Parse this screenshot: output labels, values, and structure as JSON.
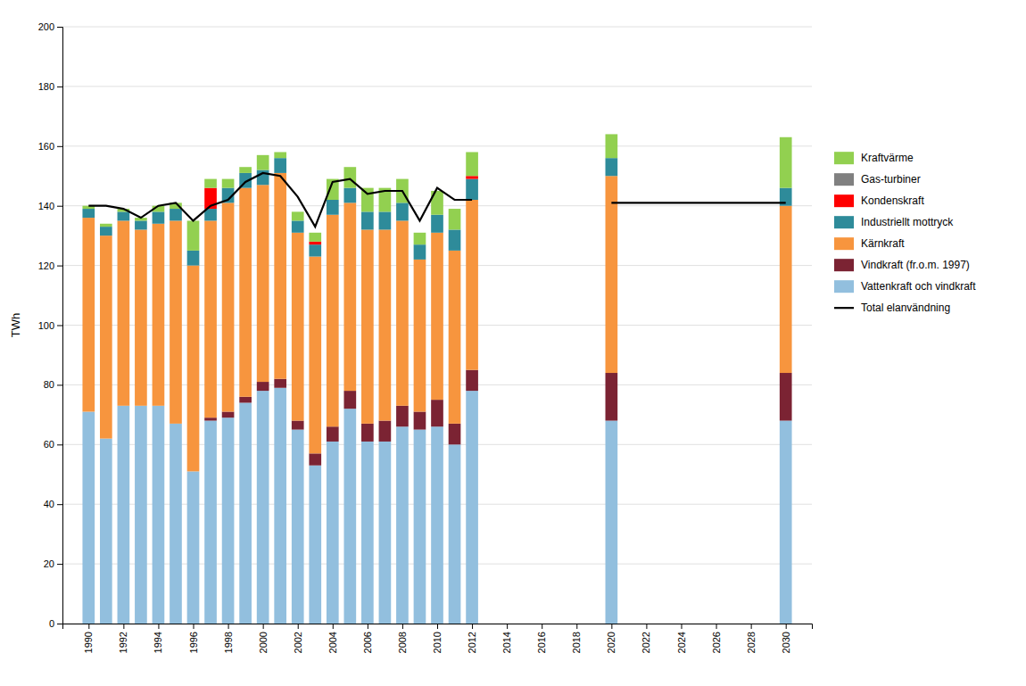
{
  "chart_data": {
    "type": "bar",
    "stacked": true,
    "grid": true,
    "legend": "right",
    "y_label": "TWh",
    "x": [
      1990,
      1991,
      1992,
      1993,
      1994,
      1995,
      1996,
      1997,
      1998,
      1999,
      2000,
      2001,
      2002,
      2003,
      2004,
      2005,
      2006,
      2007,
      2008,
      2009,
      2010,
      2011,
      2012,
      2020,
      2030
    ],
    "xlim": [
      1988.5,
      2031.5
    ],
    "xticks": [
      1990,
      1992,
      1994,
      1996,
      1998,
      2000,
      2002,
      2004,
      2006,
      2008,
      2010,
      2012,
      2014,
      2016,
      2018,
      2020,
      2022,
      2024,
      2026,
      2028,
      2030
    ],
    "ylim": [
      0,
      200
    ],
    "yticks": [
      0,
      20,
      40,
      60,
      80,
      100,
      120,
      140,
      160,
      180,
      200
    ],
    "series": [
      {
        "name": "Vattenkraft och vindkraft",
        "color": "#92BFDE",
        "values": [
          71,
          62,
          73,
          73,
          73,
          67,
          51,
          68,
          69,
          74,
          78,
          79,
          65,
          53,
          61,
          72,
          61,
          61,
          66,
          65,
          66,
          60,
          78,
          68,
          68
        ]
      },
      {
        "name": "Vindkraft (fr.o.m. 1997)",
        "color": "#7B2333",
        "values": [
          0,
          0,
          0,
          0,
          0,
          0,
          0,
          1,
          2,
          2,
          3,
          3,
          3,
          4,
          5,
          6,
          6,
          7,
          7,
          6,
          9,
          7,
          7,
          16,
          16
        ]
      },
      {
        "name": "Kärnkraft",
        "color": "#F7953E",
        "values": [
          65,
          68,
          62,
          59,
          61,
          68,
          69,
          66,
          70,
          70,
          66,
          69,
          63,
          66,
          71,
          63,
          65,
          64,
          62,
          51,
          56,
          58,
          57,
          66,
          56
        ]
      },
      {
        "name": "Industriellt mottryck",
        "color": "#2E8B9A",
        "values": [
          3,
          3,
          3,
          3,
          4,
          4,
          5,
          4,
          5,
          5,
          5,
          5,
          4,
          4,
          5,
          5,
          6,
          6,
          6,
          5,
          6,
          7,
          7,
          6,
          6
        ]
      },
      {
        "name": "Kondenskraft",
        "color": "#FF0000",
        "values": [
          0,
          0,
          0,
          0,
          0,
          0,
          0,
          7,
          0,
          0,
          0,
          0,
          0,
          1,
          0,
          0,
          0,
          0,
          0,
          0,
          0,
          0,
          1,
          0,
          0
        ]
      },
      {
        "name": "Gas-turbiner",
        "color": "#808080",
        "values": [
          0,
          0,
          0,
          0,
          0,
          0,
          0,
          0,
          0,
          0,
          0,
          0,
          0,
          0,
          0,
          0,
          0,
          0,
          0,
          0,
          0,
          0,
          0,
          0,
          0
        ]
      },
      {
        "name": "Kraftvärme",
        "color": "#92D050",
        "values": [
          1,
          1,
          1,
          1,
          2,
          2,
          10,
          3,
          3,
          2,
          5,
          2,
          3,
          3,
          7,
          7,
          8,
          8,
          8,
          4,
          8,
          7,
          8,
          8,
          17
        ]
      },
      {
        "name": "Total elanvändning",
        "type": "line",
        "color": "#000000",
        "x": [
          1990,
          1991,
          1992,
          1993,
          1994,
          1995,
          1996,
          1997,
          1998,
          1999,
          2000,
          2001,
          2002,
          2003,
          2004,
          2005,
          2006,
          2007,
          2008,
          2009,
          2010,
          2011,
          2012,
          null,
          2020,
          2030
        ],
        "values": [
          140,
          140,
          139,
          136,
          140,
          141,
          135,
          140,
          142,
          148,
          151,
          150,
          143,
          133,
          148,
          149,
          144,
          145,
          145,
          135,
          146,
          142,
          142,
          null,
          141,
          141
        ]
      }
    ]
  }
}
